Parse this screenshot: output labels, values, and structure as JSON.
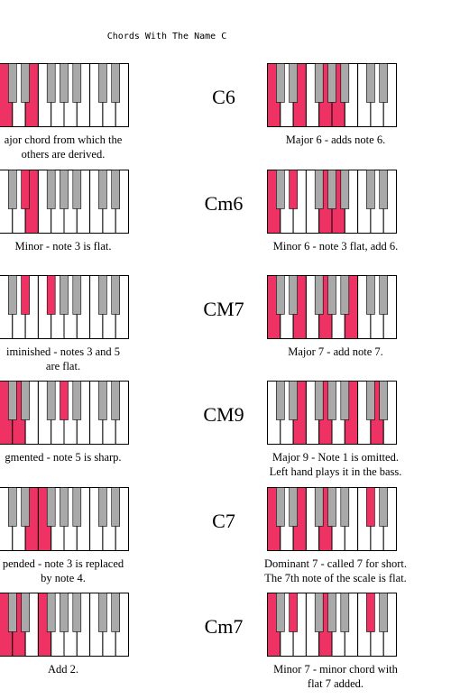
{
  "header": "Chords With The Name C",
  "colors": {
    "highlight": "#ee3364",
    "black_key": "#a9a9a9",
    "border": "#000000"
  },
  "left_column": [
    {
      "description": [
        "ajor chord from which the",
        "others are derived."
      ],
      "highlighted_white": [
        0,
        2
      ],
      "highlighted_black": []
    },
    {
      "description": [
        "Minor - note 3 is flat."
      ],
      "highlighted_white": [
        2
      ],
      "highlighted_black": [
        1
      ]
    },
    {
      "description": [
        "iminished - notes 3 and 5",
        "are flat."
      ],
      "highlighted_white": [],
      "highlighted_black": [
        1,
        2
      ]
    },
    {
      "description": [
        "gmented - note 5 is sharp."
      ],
      "highlighted_white": [
        0,
        1
      ],
      "highlighted_black": [
        3
      ]
    },
    {
      "description": [
        "pended - note 3 is replaced",
        "by note 4."
      ],
      "highlighted_white": [
        2,
        3
      ],
      "highlighted_black": []
    },
    {
      "description": [
        "Add 2."
      ],
      "highlighted_white": [
        0,
        1,
        3
      ],
      "highlighted_black": []
    }
  ],
  "right_column": [
    {
      "name": "C6",
      "description": [
        "Major 6 - adds note 6."
      ],
      "highlighted_white": [
        0,
        2,
        4,
        5
      ],
      "highlighted_black": []
    },
    {
      "name": "Cm6",
      "description": [
        "Minor 6 - note 3 flat, add 6."
      ],
      "highlighted_white": [
        0,
        4,
        5
      ],
      "highlighted_black": [
        1
      ]
    },
    {
      "name": "CM7",
      "description": [
        "Major 7 - add note 7."
      ],
      "highlighted_white": [
        0,
        2,
        4,
        6
      ],
      "highlighted_black": []
    },
    {
      "name": "CM9",
      "description": [
        "Major 9 - Note 1 is omitted.",
        "Left hand plays it in the bass."
      ],
      "highlighted_white": [
        2,
        4,
        6,
        8
      ],
      "highlighted_black": []
    },
    {
      "name": "C7",
      "description": [
        "Dominant 7 - called 7 for short.",
        "The 7th note of the scale is flat."
      ],
      "highlighted_white": [
        0,
        2,
        4
      ],
      "highlighted_black": [
        5
      ]
    },
    {
      "name": "Cm7",
      "description": [
        "Minor 7 - minor chord with",
        "flat 7 added."
      ],
      "highlighted_white": [
        0,
        4
      ],
      "highlighted_black": [
        1,
        5
      ]
    }
  ]
}
